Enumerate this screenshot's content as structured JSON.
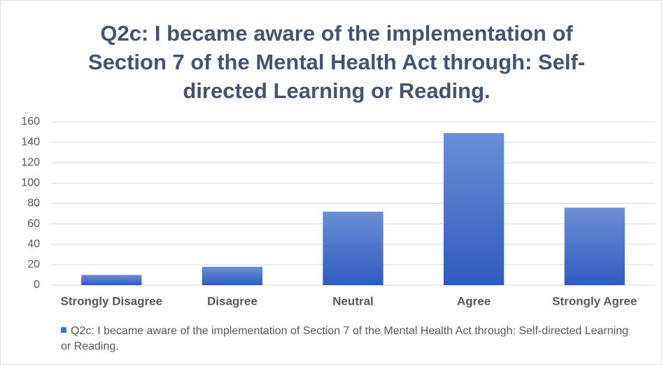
{
  "chart_data": {
    "type": "bar",
    "title": "Q2c: I became aware of the implementation of Section 7 of the Mental Health Act through: Self-directed Learning or Reading.",
    "categories": [
      "Strongly Disagree",
      "Disagree",
      "Neutral",
      "Agree",
      "Strongly Agree"
    ],
    "series": [
      {
        "name": "Q2c: I became aware of the implementation of Section 7 of the Mental Health Act through: Self-directed Learning or Reading.",
        "color": "#4472c4",
        "values": [
          10,
          18,
          72,
          149,
          76
        ]
      }
    ],
    "ylim": [
      0,
      160
    ],
    "yticks": [
      0,
      20,
      40,
      60,
      80,
      100,
      120,
      140,
      160
    ],
    "grid": true,
    "legend": "bottom"
  }
}
